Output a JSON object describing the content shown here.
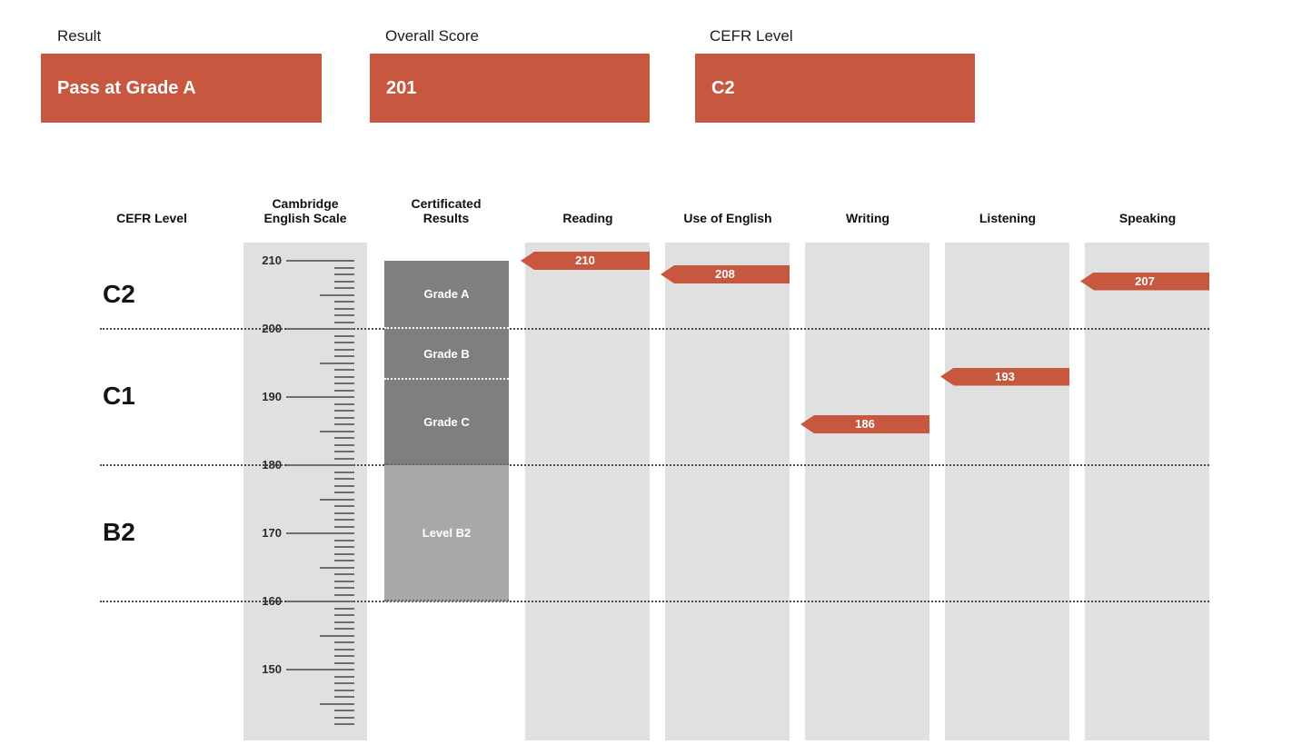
{
  "summary": {
    "result": {
      "label": "Result",
      "value": "Pass at Grade A"
    },
    "overall_score": {
      "label": "Overall Score",
      "value": "201"
    },
    "cefr_level": {
      "label": "CEFR Level",
      "value": "C2"
    }
  },
  "colors": {
    "accent": "#c85740",
    "band_dark": "#7f7f7f",
    "band_light": "#a8a8a8",
    "column_bg": "#e0e0e0",
    "tick": "#6e6e6e",
    "dotted_line": "#4a4a4a",
    "divider_dark": "#666666",
    "divider_white": "#ffffff"
  },
  "chart_data": {
    "type": "bar",
    "title": "",
    "column_headers": [
      "CEFR Level",
      "Cambridge English Scale",
      "Certificated Results",
      "Reading",
      "Use of English",
      "Writing",
      "Listening",
      "Speaking"
    ],
    "categories": [
      "Reading",
      "Use of English",
      "Writing",
      "Listening",
      "Speaking"
    ],
    "values": [
      210,
      208,
      186,
      193,
      207
    ],
    "ylabel": "Cambridge English Scale",
    "ylim": [
      142,
      210
    ],
    "scale": {
      "labeled_ticks": [
        210,
        200,
        190,
        180,
        170,
        160,
        150
      ],
      "tick_max": 210,
      "tick_min": 142,
      "minor_step": 1,
      "medium_step": 5
    },
    "cefr_bands": [
      {
        "label": "C2",
        "from": 200,
        "to": 210
      },
      {
        "label": "C1",
        "from": 180,
        "to": 200
      },
      {
        "label": "B2",
        "from": 160,
        "to": 180
      }
    ],
    "certificated_results": [
      {
        "label": "Grade A",
        "from": 200,
        "to": 210,
        "shade": "dark",
        "divider": "white"
      },
      {
        "label": "Grade B",
        "from": 192.5,
        "to": 200,
        "shade": "dark",
        "divider": "white"
      },
      {
        "label": "Grade C",
        "from": 180,
        "to": 192.5,
        "shade": "dark",
        "divider": "dark"
      },
      {
        "label": "Level B2",
        "from": 160,
        "to": 180,
        "shade": "light",
        "divider": "dark"
      }
    ],
    "gridlines_at": [
      200,
      180,
      160
    ],
    "grid": "dotted-horizontal",
    "legend_position": "none"
  }
}
